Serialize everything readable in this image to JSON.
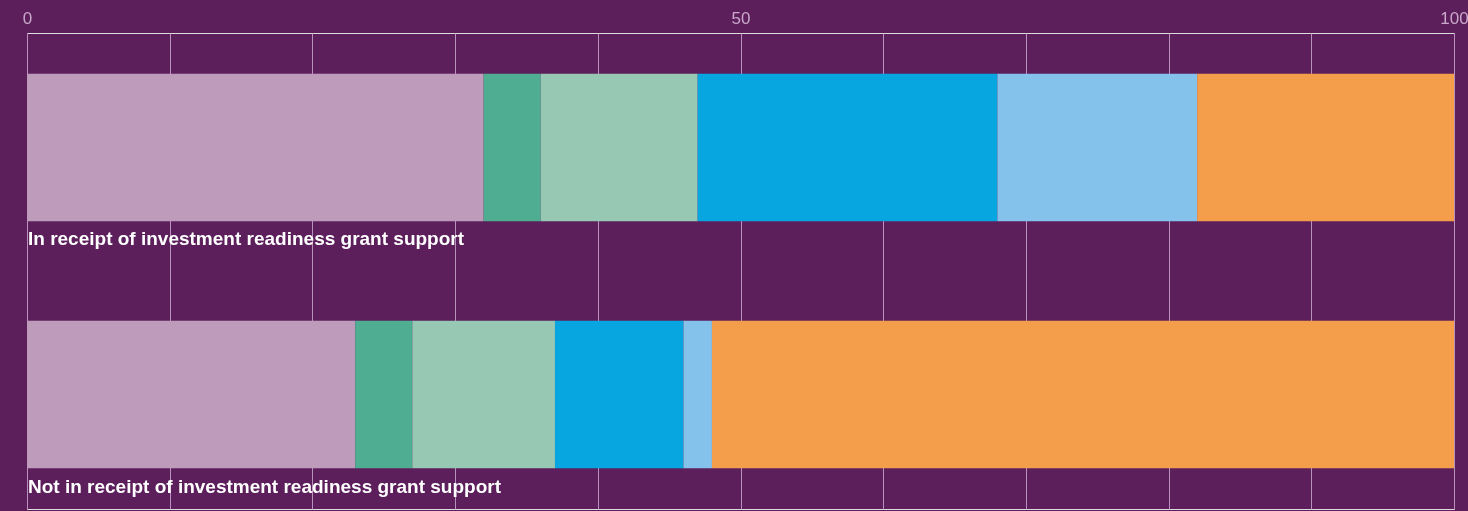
{
  "chart_data": {
    "type": "bar",
    "orientation": "horizontal",
    "stacked": true,
    "categories": [
      "In receipt of investment readiness grant support",
      "Not in receipt of investment readiness grant support"
    ],
    "series": [
      {
        "color": "#bf9bbb",
        "values": [
          32,
          23
        ]
      },
      {
        "color": "#4fae92",
        "values": [
          4,
          4
        ]
      },
      {
        "color": "#96c8b3",
        "values": [
          11,
          10
        ]
      },
      {
        "color": "#08a6e0",
        "values": [
          21,
          9
        ]
      },
      {
        "color": "#84c2ec",
        "values": [
          14,
          2
        ]
      },
      {
        "color": "#f49e4c",
        "values": [
          18,
          52
        ]
      }
    ],
    "xlim": [
      0,
      100
    ],
    "xticks": [
      0,
      {
        "value": 10,
        "label": null
      },
      {
        "value": 20,
        "label": null
      },
      {
        "value": 30,
        "label": null
      },
      {
        "value": 40,
        "label": null
      },
      50,
      {
        "value": 60,
        "label": null
      },
      {
        "value": 70,
        "label": null
      },
      {
        "value": 80,
        "label": null
      },
      {
        "value": 90,
        "label": null
      },
      100
    ],
    "grid": "x"
  }
}
